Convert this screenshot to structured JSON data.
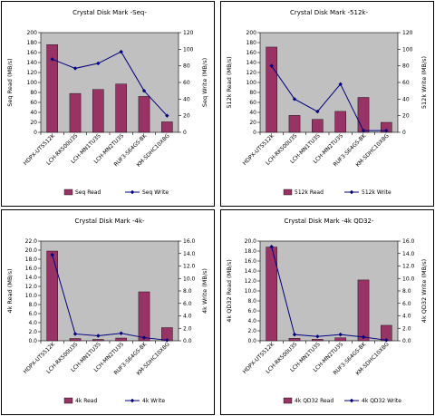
{
  "chart_data": [
    {
      "type": "bar",
      "title": "Crystal Disk Mark -Seq-",
      "categories": [
        "HDPX-UTS512K",
        "LCH-RK500U3S",
        "LCH-MN1TU3S",
        "LCH-MN2TU3S",
        "RUF3-S64GS-BK",
        "KM-SDHC10X8G"
      ],
      "ylabel": "Seq Read (MB/s)",
      "y2label": "Seq Write (MB/s)",
      "ylim": [
        0,
        200
      ],
      "yticks": [
        0,
        20,
        40,
        60,
        80,
        100,
        120,
        140,
        160,
        180,
        200
      ],
      "y2lim": [
        0,
        120
      ],
      "y2ticks": [
        0,
        20,
        40,
        60,
        80,
        100,
        120
      ],
      "tick_decimals": 0,
      "series": [
        {
          "name": "Seq Read",
          "kind": "bar",
          "axis": "left",
          "values": [
            176,
            78,
            86,
            97,
            72,
            21
          ]
        },
        {
          "name": "Seq Write",
          "kind": "line",
          "axis": "right",
          "values": [
            88,
            77,
            83,
            97,
            50,
            20
          ]
        }
      ],
      "grid": false,
      "legend": "bottom",
      "colors": {
        "bar": "#993366",
        "line": "#000080",
        "plot_bg": "#c0c0c0"
      }
    },
    {
      "type": "bar",
      "title": "Crystal Disk Mark -512k-",
      "categories": [
        "HDPX-UTS512K",
        "LCH-RK500U3S",
        "LCH-MN1TU3S",
        "LCH-MN2TU3S",
        "RUF3-S64GS-BK",
        "KM-SDHC10X8G"
      ],
      "ylabel": "512k Read (MB/s)",
      "y2label": "512k Write (MB/s)",
      "ylim": [
        0,
        200
      ],
      "yticks": [
        0,
        20,
        40,
        60,
        80,
        100,
        120,
        140,
        160,
        180,
        200
      ],
      "y2lim": [
        0,
        120
      ],
      "y2ticks": [
        0,
        20,
        40,
        60,
        80,
        100,
        120
      ],
      "tick_decimals": 0,
      "series": [
        {
          "name": "512k Read",
          "kind": "bar",
          "axis": "left",
          "values": [
            171,
            34,
            26,
            42,
            70,
            20
          ]
        },
        {
          "name": "512k Write",
          "kind": "line",
          "axis": "right",
          "values": [
            80,
            40,
            25,
            58,
            2,
            2
          ]
        }
      ],
      "grid": false,
      "legend": "bottom",
      "colors": {
        "bar": "#993366",
        "line": "#000080",
        "plot_bg": "#c0c0c0"
      }
    },
    {
      "type": "bar",
      "title": "Crystal Disk Mark -4k-",
      "categories": [
        "HDPX-UTS512K",
        "LCH-RK500U3S",
        "LCH-MN1TU3S",
        "LCH-MN2TU3S",
        "RUF3-S64GS-BK",
        "KM-SDHC10X8G"
      ],
      "ylabel": "4k Read (MB/s)",
      "y2label": "4k Write (MB/s)",
      "ylim": [
        0,
        22
      ],
      "yticks": [
        0,
        2,
        4,
        6,
        8,
        10,
        12,
        14,
        16,
        18,
        20,
        22
      ],
      "y2lim": [
        0,
        16
      ],
      "y2ticks": [
        0,
        2,
        4,
        6,
        8,
        10,
        12,
        14,
        16
      ],
      "tick_decimals": 1,
      "series": [
        {
          "name": "4k Read",
          "kind": "bar",
          "axis": "left",
          "values": [
            19.8,
            0.5,
            0.3,
            0.6,
            10.8,
            2.9
          ]
        },
        {
          "name": "4k Write",
          "kind": "line",
          "axis": "right",
          "values": [
            13.8,
            1.1,
            0.8,
            1.2,
            0.5,
            0.1
          ]
        }
      ],
      "grid": false,
      "legend": "bottom",
      "colors": {
        "bar": "#993366",
        "line": "#000080",
        "plot_bg": "#c0c0c0"
      }
    },
    {
      "type": "bar",
      "title": "Crystal Disk Mark -4k QD32-",
      "categories": [
        "HDPX-UTS512K",
        "LCH-RK500U3S",
        "LCH-MN1TU3S",
        "LCH-MN2TU3S",
        "RUF3-S64GS-BK",
        "KM-SDHC10X8G"
      ],
      "ylabel": "4k QD32 Read (MB/s)",
      "y2label": "4k QD32 Write (MB/s)",
      "ylim": [
        0,
        20
      ],
      "yticks": [
        0,
        2,
        4,
        6,
        8,
        10,
        12,
        14,
        16,
        18,
        20
      ],
      "y2lim": [
        0,
        16
      ],
      "y2ticks": [
        0,
        2,
        4,
        6,
        8,
        10,
        12,
        14,
        16
      ],
      "tick_decimals": 1,
      "series": [
        {
          "name": "4k QD32 Read",
          "kind": "bar",
          "axis": "left",
          "values": [
            18.8,
            0.5,
            0.3,
            0.6,
            12.2,
            3.1
          ]
        },
        {
          "name": "4k QD32 Write",
          "kind": "line",
          "axis": "right",
          "values": [
            15.1,
            1.0,
            0.7,
            1.0,
            0.6,
            0.1
          ]
        }
      ],
      "grid": false,
      "legend": "bottom",
      "colors": {
        "bar": "#993366",
        "line": "#000080",
        "plot_bg": "#c0c0c0"
      }
    }
  ]
}
